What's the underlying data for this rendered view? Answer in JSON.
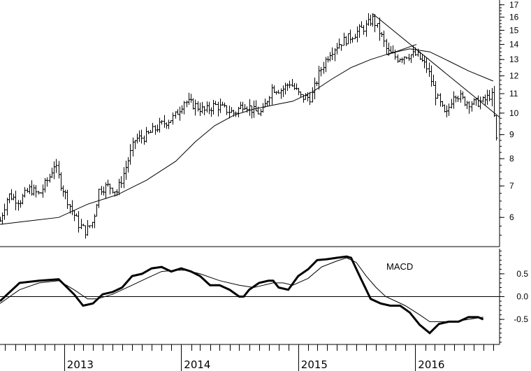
{
  "chart_data": [
    {
      "type": "ohlc",
      "panel": "price",
      "y_scale": "log",
      "ylim": [
        5.2,
        17.4
      ],
      "y_ticks": [
        6,
        7,
        8,
        9,
        10,
        11,
        12,
        13,
        14,
        15,
        16,
        17
      ],
      "x_range": [
        "2012-06-15",
        "2016-09-20"
      ],
      "x_tick_years": [
        "2013",
        "2014",
        "2015",
        "2016"
      ],
      "grid": false,
      "price_path": [
        [
          "2012-06-15",
          5.9
        ],
        [
          "2012-07-10",
          6.7
        ],
        [
          "2012-08-15",
          6.5
        ],
        [
          "2012-09-15",
          6.9
        ],
        [
          "2012-10-15",
          6.7
        ],
        [
          "2012-11-15",
          7.3
        ],
        [
          "2012-12-01",
          7.8
        ],
        [
          "2012-12-20",
          7.1
        ],
        [
          "2013-01-20",
          6.3
        ],
        [
          "2013-02-15",
          5.8
        ],
        [
          "2013-03-10",
          5.6
        ],
        [
          "2013-04-01",
          5.9
        ],
        [
          "2013-04-20",
          6.9
        ],
        [
          "2013-05-20",
          7.0
        ],
        [
          "2013-06-15",
          6.8
        ],
        [
          "2013-07-10",
          7.6
        ],
        [
          "2013-08-10",
          8.8
        ],
        [
          "2013-09-10",
          8.9
        ],
        [
          "2013-10-15",
          9.3
        ],
        [
          "2013-11-15",
          9.6
        ],
        [
          "2013-12-10",
          9.8
        ],
        [
          "2014-01-10",
          10.6
        ],
        [
          "2014-02-10",
          10.4
        ],
        [
          "2014-03-15",
          10.1
        ],
        [
          "2014-04-15",
          10.4
        ],
        [
          "2014-05-15",
          10.2
        ],
        [
          "2014-06-15",
          10.0
        ],
        [
          "2014-07-15",
          10.5
        ],
        [
          "2014-08-15",
          10.1
        ],
        [
          "2014-09-10",
          10.0
        ],
        [
          "2014-10-10",
          11.3
        ],
        [
          "2014-11-10",
          11.2
        ],
        [
          "2014-12-05",
          11.6
        ],
        [
          "2015-01-10",
          10.8
        ],
        [
          "2015-02-10",
          10.8
        ],
        [
          "2015-03-10",
          12.3
        ],
        [
          "2015-04-10",
          13.5
        ],
        [
          "2015-05-10",
          14.1
        ],
        [
          "2015-06-10",
          14.5
        ],
        [
          "2015-07-10",
          15.0
        ],
        [
          "2015-08-01",
          15.3
        ],
        [
          "2015-08-20",
          15.9
        ],
        [
          "2015-09-15",
          14.7
        ],
        [
          "2015-10-05",
          13.5
        ],
        [
          "2015-11-05",
          13.1
        ],
        [
          "2015-12-05",
          13.3
        ],
        [
          "2016-01-05",
          13.3
        ],
        [
          "2016-02-05",
          12.5
        ],
        [
          "2016-03-05",
          10.9
        ],
        [
          "2016-04-05",
          9.8
        ],
        [
          "2016-05-01",
          11.1
        ],
        [
          "2016-06-01",
          10.6
        ],
        [
          "2016-07-01",
          10.5
        ],
        [
          "2016-08-01",
          10.6
        ],
        [
          "2016-08-25",
          11.0
        ],
        [
          "2016-09-10",
          8.6
        ],
        [
          "2016-09-18",
          9.6
        ]
      ],
      "moving_average_40wk": [
        [
          "2012-06-15",
          5.8
        ],
        [
          "2012-09-15",
          5.9
        ],
        [
          "2012-12-15",
          6.0
        ],
        [
          "2013-03-15",
          6.4
        ],
        [
          "2013-06-15",
          6.7
        ],
        [
          "2013-09-15",
          7.2
        ],
        [
          "2013-12-15",
          7.9
        ],
        [
          "2014-02-15",
          8.7
        ],
        [
          "2014-04-15",
          9.4
        ],
        [
          "2014-06-15",
          9.9
        ],
        [
          "2014-08-15",
          10.2
        ],
        [
          "2014-10-15",
          10.4
        ],
        [
          "2014-12-15",
          10.6
        ],
        [
          "2015-02-15",
          11.1
        ],
        [
          "2015-04-15",
          11.8
        ],
        [
          "2015-06-15",
          12.5
        ],
        [
          "2015-08-15",
          13.0
        ],
        [
          "2015-10-15",
          13.4
        ],
        [
          "2015-12-15",
          13.7
        ],
        [
          "2016-02-15",
          13.5
        ],
        [
          "2016-04-15",
          12.9
        ],
        [
          "2016-06-15",
          12.3
        ],
        [
          "2016-08-31",
          11.7
        ]
      ],
      "trendlines": [
        [
          [
            "2015-08-20",
            16.3
          ],
          [
            "2016-09-20",
            9.8
          ]
        ],
        [
          [
            "2015-10-05",
            13.3
          ],
          [
            "2016-01-05",
            14.0
          ]
        ]
      ]
    },
    {
      "type": "line",
      "panel": "indicator",
      "ylim": [
        -1.05,
        1.05
      ],
      "y_ticks": [
        -0.5,
        0.0,
        0.5
      ],
      "y_tick_labels": [
        "-0.5",
        "0.0",
        "0.5"
      ],
      "annotations": [
        "MACD"
      ],
      "zero_line": true,
      "series": [
        {
          "style": "thick",
          "points": [
            [
              "2012-06-15",
              -0.1
            ],
            [
              "2012-08-15",
              0.3
            ],
            [
              "2012-10-15",
              0.35
            ],
            [
              "2012-12-15",
              0.38
            ],
            [
              "2013-02-01",
              0.05
            ],
            [
              "2013-03-01",
              -0.2
            ],
            [
              "2013-04-01",
              -0.15
            ],
            [
              "2013-05-01",
              0.05
            ],
            [
              "2013-06-01",
              0.1
            ],
            [
              "2013-07-01",
              0.2
            ],
            [
              "2013-08-01",
              0.45
            ],
            [
              "2013-09-01",
              0.5
            ],
            [
              "2013-10-01",
              0.62
            ],
            [
              "2013-11-01",
              0.65
            ],
            [
              "2013-12-01",
              0.55
            ],
            [
              "2014-01-01",
              0.62
            ],
            [
              "2014-02-01",
              0.55
            ],
            [
              "2014-03-01",
              0.45
            ],
            [
              "2014-04-01",
              0.25
            ],
            [
              "2014-05-01",
              0.25
            ],
            [
              "2014-06-01",
              0.15
            ],
            [
              "2014-07-01",
              0.0
            ],
            [
              "2014-07-15",
              0.0
            ],
            [
              "2014-08-01",
              0.15
            ],
            [
              "2014-09-01",
              0.3
            ],
            [
              "2014-10-01",
              0.35
            ],
            [
              "2014-10-15",
              0.35
            ],
            [
              "2014-11-01",
              0.2
            ],
            [
              "2014-12-01",
              0.15
            ],
            [
              "2015-01-01",
              0.45
            ],
            [
              "2015-02-01",
              0.6
            ],
            [
              "2015-03-01",
              0.8
            ],
            [
              "2015-04-01",
              0.82
            ],
            [
              "2015-05-01",
              0.85
            ],
            [
              "2015-06-01",
              0.88
            ],
            [
              "2015-06-15",
              0.85
            ],
            [
              "2015-07-15",
              0.4
            ],
            [
              "2015-08-15",
              -0.05
            ],
            [
              "2015-09-15",
              -0.15
            ],
            [
              "2015-10-15",
              -0.2
            ],
            [
              "2015-11-15",
              -0.2
            ],
            [
              "2015-12-15",
              -0.35
            ],
            [
              "2016-01-15",
              -0.62
            ],
            [
              "2016-02-15",
              -0.8
            ],
            [
              "2016-03-15",
              -0.6
            ],
            [
              "2016-04-15",
              -0.55
            ],
            [
              "2016-05-15",
              -0.55
            ],
            [
              "2016-06-15",
              -0.45
            ],
            [
              "2016-07-15",
              -0.45
            ],
            [
              "2016-07-31",
              -0.5
            ]
          ]
        },
        {
          "style": "thin",
          "points": [
            [
              "2012-06-15",
              -0.15
            ],
            [
              "2012-08-15",
              0.15
            ],
            [
              "2012-10-15",
              0.3
            ],
            [
              "2012-12-15",
              0.35
            ],
            [
              "2013-02-01",
              0.15
            ],
            [
              "2013-03-15",
              -0.05
            ],
            [
              "2013-04-15",
              -0.05
            ],
            [
              "2013-06-01",
              0.05
            ],
            [
              "2013-08-01",
              0.25
            ],
            [
              "2013-09-15",
              0.4
            ],
            [
              "2013-11-01",
              0.55
            ],
            [
              "2013-12-15",
              0.58
            ],
            [
              "2014-01-15",
              0.58
            ],
            [
              "2014-03-01",
              0.5
            ],
            [
              "2014-05-01",
              0.35
            ],
            [
              "2014-07-01",
              0.25
            ],
            [
              "2014-08-15",
              0.2
            ],
            [
              "2014-09-15",
              0.25
            ],
            [
              "2014-10-15",
              0.3
            ],
            [
              "2014-11-15",
              0.3
            ],
            [
              "2014-12-15",
              0.25
            ],
            [
              "2015-02-01",
              0.4
            ],
            [
              "2015-03-15",
              0.65
            ],
            [
              "2015-05-01",
              0.78
            ],
            [
              "2015-06-01",
              0.85
            ],
            [
              "2015-07-01",
              0.75
            ],
            [
              "2015-08-01",
              0.45
            ],
            [
              "2015-09-01",
              0.2
            ],
            [
              "2015-10-01",
              0.0
            ],
            [
              "2015-11-01",
              -0.1
            ],
            [
              "2015-12-01",
              -0.2
            ],
            [
              "2016-01-15",
              -0.4
            ],
            [
              "2016-02-15",
              -0.55
            ],
            [
              "2016-03-15",
              -0.55
            ],
            [
              "2016-05-01",
              -0.55
            ],
            [
              "2016-07-31",
              -0.45
            ]
          ]
        }
      ]
    }
  ]
}
